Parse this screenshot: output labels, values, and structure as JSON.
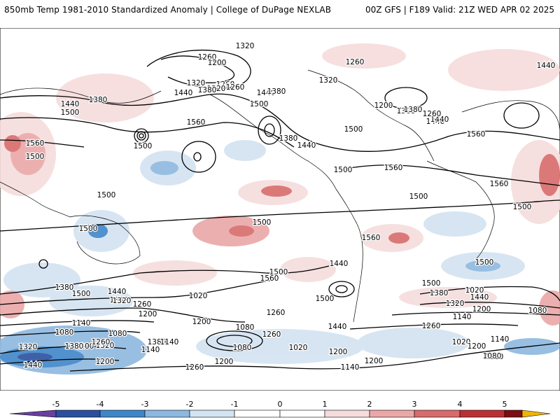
{
  "header": {
    "title": "850mb Temp 1981-2010 Standardized Anomaly | College of DuPage NEXLAB",
    "run": "00Z GFS | F189 Valid: 21Z WED APR 02 2025"
  },
  "colors": {
    "c_m5": "#6a3fa0",
    "c_m4": "#2b4f9e",
    "c_m3": "#3f86c8",
    "c_m2": "#8db8df",
    "c_m1": "#d3e3f1",
    "c_0": "#ffffff",
    "c_p1": "#f6dcdc",
    "c_p2": "#eba7a7",
    "c_p3": "#d86b6b",
    "c_p4": "#bb2f33",
    "c_p5": "#7a0e12",
    "c_p6": "#f0b400"
  },
  "colorbar": {
    "ticks": [
      "-5",
      "-4",
      "-3",
      "-2",
      "-1",
      "0",
      "1",
      "2",
      "3",
      "4",
      "5"
    ]
  },
  "contour_labels": [
    "1320",
    "1260",
    "1200",
    "1260",
    "1320",
    "1440",
    "1320",
    "1380",
    "1260",
    "1440",
    "1380",
    "1500",
    "1560",
    "1500",
    "1500",
    "1380",
    "1440",
    "1500",
    "1560",
    "1440",
    "1500",
    "1560",
    "1500",
    "1380",
    "1260",
    "1440",
    "1560",
    "1500",
    "1440",
    "1380",
    "1500",
    "1200",
    "1260",
    "1320",
    "1380",
    "1440",
    "1500",
    "1500",
    "1500",
    "1500",
    "1560",
    "1500",
    "1500",
    "1560",
    "1500",
    "1500",
    "1560",
    "1440",
    "1500",
    "1440",
    "1380",
    "1500",
    "1440",
    "1380",
    "1320",
    "1260",
    "1200",
    "1140",
    "1080",
    "1020",
    "1500",
    "1440",
    "1380",
    "1320",
    "1260",
    "1200",
    "1140",
    "1080",
    "1020",
    "1260",
    "1200",
    "1320",
    "1380",
    "1140",
    "1080",
    "1020",
    "1140",
    "1200",
    "1080",
    "1260",
    "1200",
    "1140",
    "1200",
    "1380",
    "1440",
    "1320",
    "1260",
    "1320",
    "1200",
    "1080",
    "1020",
    "1140",
    "1200",
    "1080",
    "1260",
    "1200"
  ]
}
